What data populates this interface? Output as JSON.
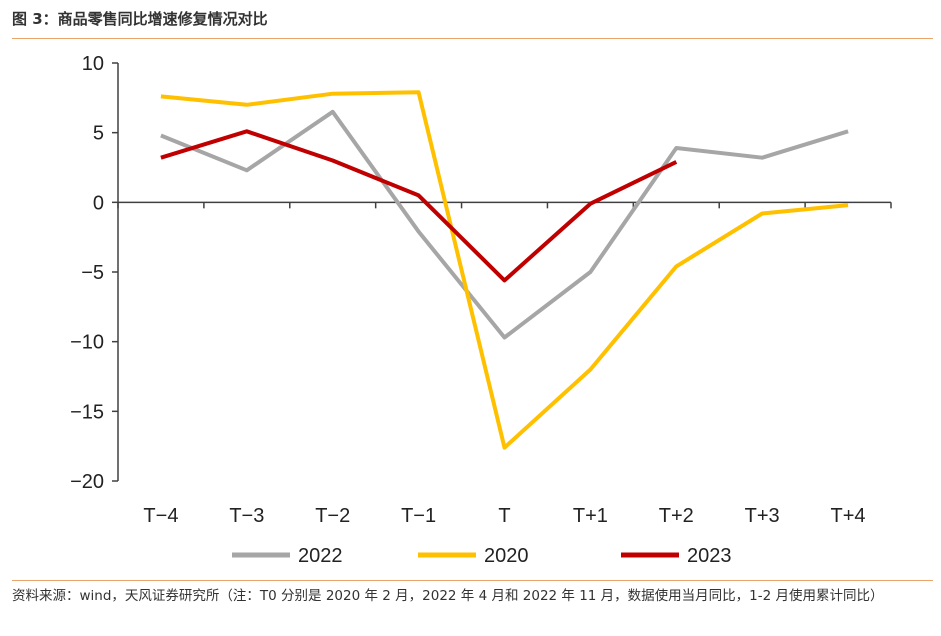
{
  "figure": {
    "title": "图 3：商品零售同比增速修复情况对比",
    "source": "资料来源：wind，天风证券研究所（注：T0 分别是 2020 年 2 月，2022 年 4 月和 2022 年 11 月，数据使用当月同比，1-2 月使用累计同比）"
  },
  "chart_data": {
    "type": "line",
    "categories": [
      "T−4",
      "T−3",
      "T−2",
      "T−1",
      "T",
      "T+1",
      "T+2",
      "T+3",
      "T+4"
    ],
    "y_ticks": [
      "10",
      "5",
      "0",
      "−5",
      "−10",
      "−15",
      "−20"
    ],
    "y_tick_values": [
      10,
      5,
      0,
      -5,
      -10,
      -15,
      -20
    ],
    "ylim": [
      -20,
      10
    ],
    "grid": false,
    "legend_position": "bottom",
    "series": [
      {
        "name": "2022",
        "color": "#a6a6a6",
        "values": [
          4.8,
          2.3,
          6.5,
          -2.1,
          -9.7,
          -5.0,
          3.9,
          3.2,
          5.1
        ]
      },
      {
        "name": "2020",
        "color": "#ffc000",
        "values": [
          7.6,
          7.0,
          7.8,
          7.9,
          -17.6,
          -12.0,
          -4.6,
          -0.8,
          -0.2
        ]
      },
      {
        "name": "2023",
        "color": "#c00000",
        "values": [
          3.2,
          5.1,
          3.0,
          0.5,
          -5.6,
          -0.1,
          2.9,
          null,
          null
        ]
      }
    ]
  }
}
